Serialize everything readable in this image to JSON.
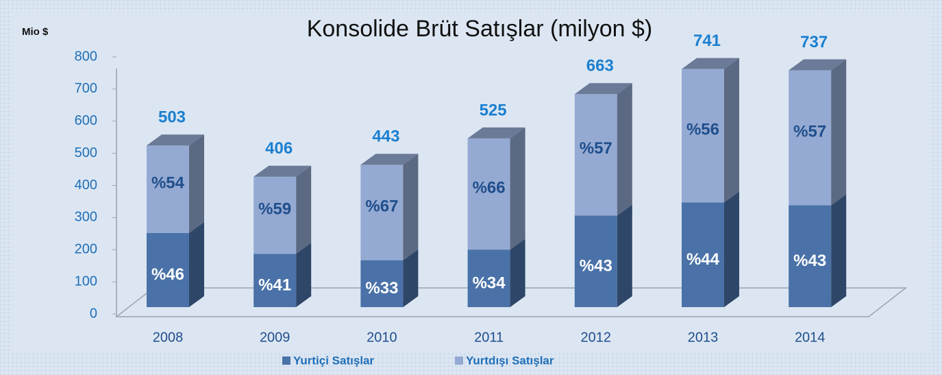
{
  "chart_data": {
    "type": "bar3d-stacked",
    "title": "Konsolide Brüt Satışlar (milyon $)",
    "y_label": "Mio $",
    "categories": [
      "2008",
      "2009",
      "2010",
      "2011",
      "2012",
      "2013",
      "2014"
    ],
    "series": [
      {
        "name": "Yurtiçi Satışlar",
        "color": "#4a72a8",
        "values": [
          231,
          166,
          146,
          179,
          285,
          326,
          317
        ],
        "labels": [
          "%46",
          "%41",
          "%33",
          "%34",
          "%43",
          "%44",
          "%43"
        ]
      },
      {
        "name": "Yurtdışı Satışlar",
        "color": "#95aad2",
        "values": [
          272,
          240,
          297,
          346,
          378,
          415,
          420
        ],
        "labels": [
          "%54",
          "%59",
          "%67",
          "%66",
          "%57",
          "%56",
          "%57"
        ]
      }
    ],
    "totals": [
      503,
      406,
      443,
      525,
      663,
      741,
      737
    ],
    "ylim": [
      0,
      800
    ],
    "yticks": [
      0,
      100,
      200,
      300,
      400,
      500,
      600,
      700,
      800
    ]
  }
}
